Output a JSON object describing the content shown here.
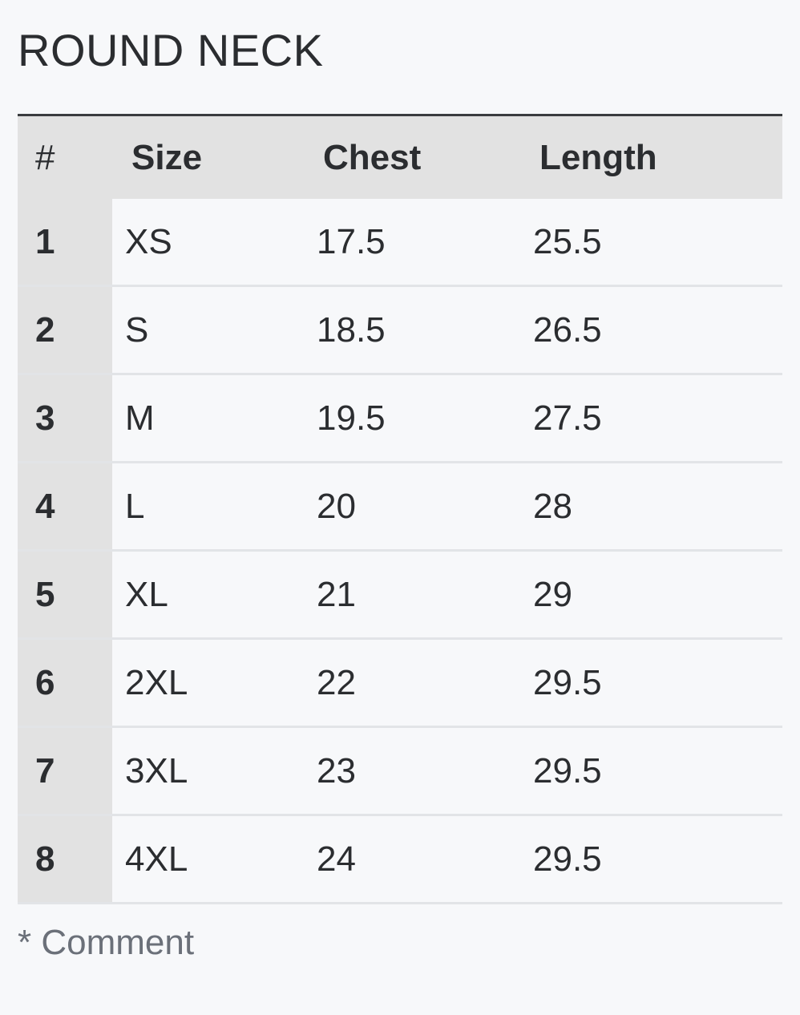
{
  "title": "ROUND NECK",
  "table": {
    "headers": [
      "#",
      "Size",
      "Chest",
      "Length"
    ],
    "rows": [
      {
        "num": "1",
        "size": "XS",
        "chest": "17.5",
        "length": "25.5"
      },
      {
        "num": "2",
        "size": "S",
        "chest": "18.5",
        "length": "26.5"
      },
      {
        "num": "3",
        "size": "M",
        "chest": "19.5",
        "length": "27.5"
      },
      {
        "num": "4",
        "size": "L",
        "chest": "20",
        "length": "28"
      },
      {
        "num": "5",
        "size": "XL",
        "chest": "21",
        "length": "29"
      },
      {
        "num": "6",
        "size": "2XL",
        "chest": "22",
        "length": "29.5"
      },
      {
        "num": "7",
        "size": "3XL",
        "chest": "23",
        "length": "29.5"
      },
      {
        "num": "8",
        "size": "4XL",
        "chest": "24",
        "length": "29.5"
      }
    ]
  },
  "comment": "* Comment",
  "colors": {
    "background": "#f7f8fa",
    "header_background": "#e2e2e2",
    "text": "#2b2d30",
    "comment_text": "#6b7079"
  }
}
